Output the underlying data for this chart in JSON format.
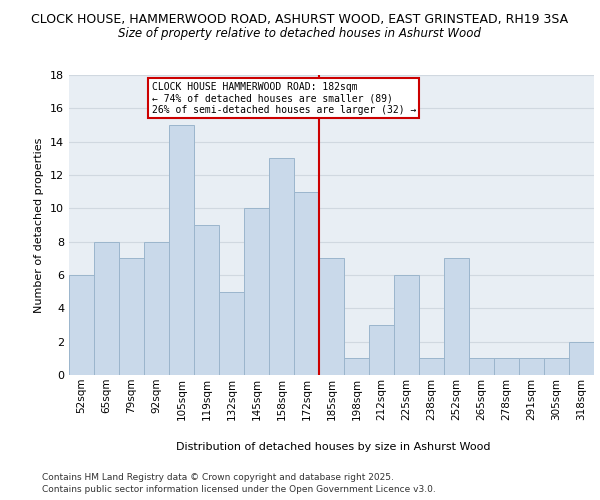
{
  "title_line1": "CLOCK HOUSE, HAMMERWOOD ROAD, ASHURST WOOD, EAST GRINSTEAD, RH19 3SA",
  "title_line2": "Size of property relative to detached houses in Ashurst Wood",
  "xlabel": "Distribution of detached houses by size in Ashurst Wood",
  "ylabel": "Number of detached properties",
  "categories": [
    "52sqm",
    "65sqm",
    "79sqm",
    "92sqm",
    "105sqm",
    "119sqm",
    "132sqm",
    "145sqm",
    "158sqm",
    "172sqm",
    "185sqm",
    "198sqm",
    "212sqm",
    "225sqm",
    "238sqm",
    "252sqm",
    "265sqm",
    "278sqm",
    "291sqm",
    "305sqm",
    "318sqm"
  ],
  "values": [
    6,
    8,
    7,
    8,
    15,
    9,
    5,
    10,
    13,
    11,
    7,
    1,
    3,
    6,
    1,
    7,
    1,
    1,
    1,
    1,
    2
  ],
  "bar_color": "#c9d9ea",
  "bar_edge_color": "#9bb5cc",
  "grid_color": "#d0d8e0",
  "red_line_index": 10,
  "annotation_text_line1": "CLOCK HOUSE HAMMERWOOD ROAD: 182sqm",
  "annotation_text_line2": "← 74% of detached houses are smaller (89)",
  "annotation_text_line3": "26% of semi-detached houses are larger (32) →",
  "annotation_box_color": "#ffffff",
  "annotation_border_color": "#cc0000",
  "red_line_color": "#cc0000",
  "footer_line1": "Contains HM Land Registry data © Crown copyright and database right 2025.",
  "footer_line2": "Contains public sector information licensed under the Open Government Licence v3.0.",
  "ylim": [
    0,
    18
  ],
  "yticks": [
    0,
    2,
    4,
    6,
    8,
    10,
    12,
    14,
    16,
    18
  ],
  "background_color": "#e8eef4",
  "fig_background_color": "#ffffff"
}
